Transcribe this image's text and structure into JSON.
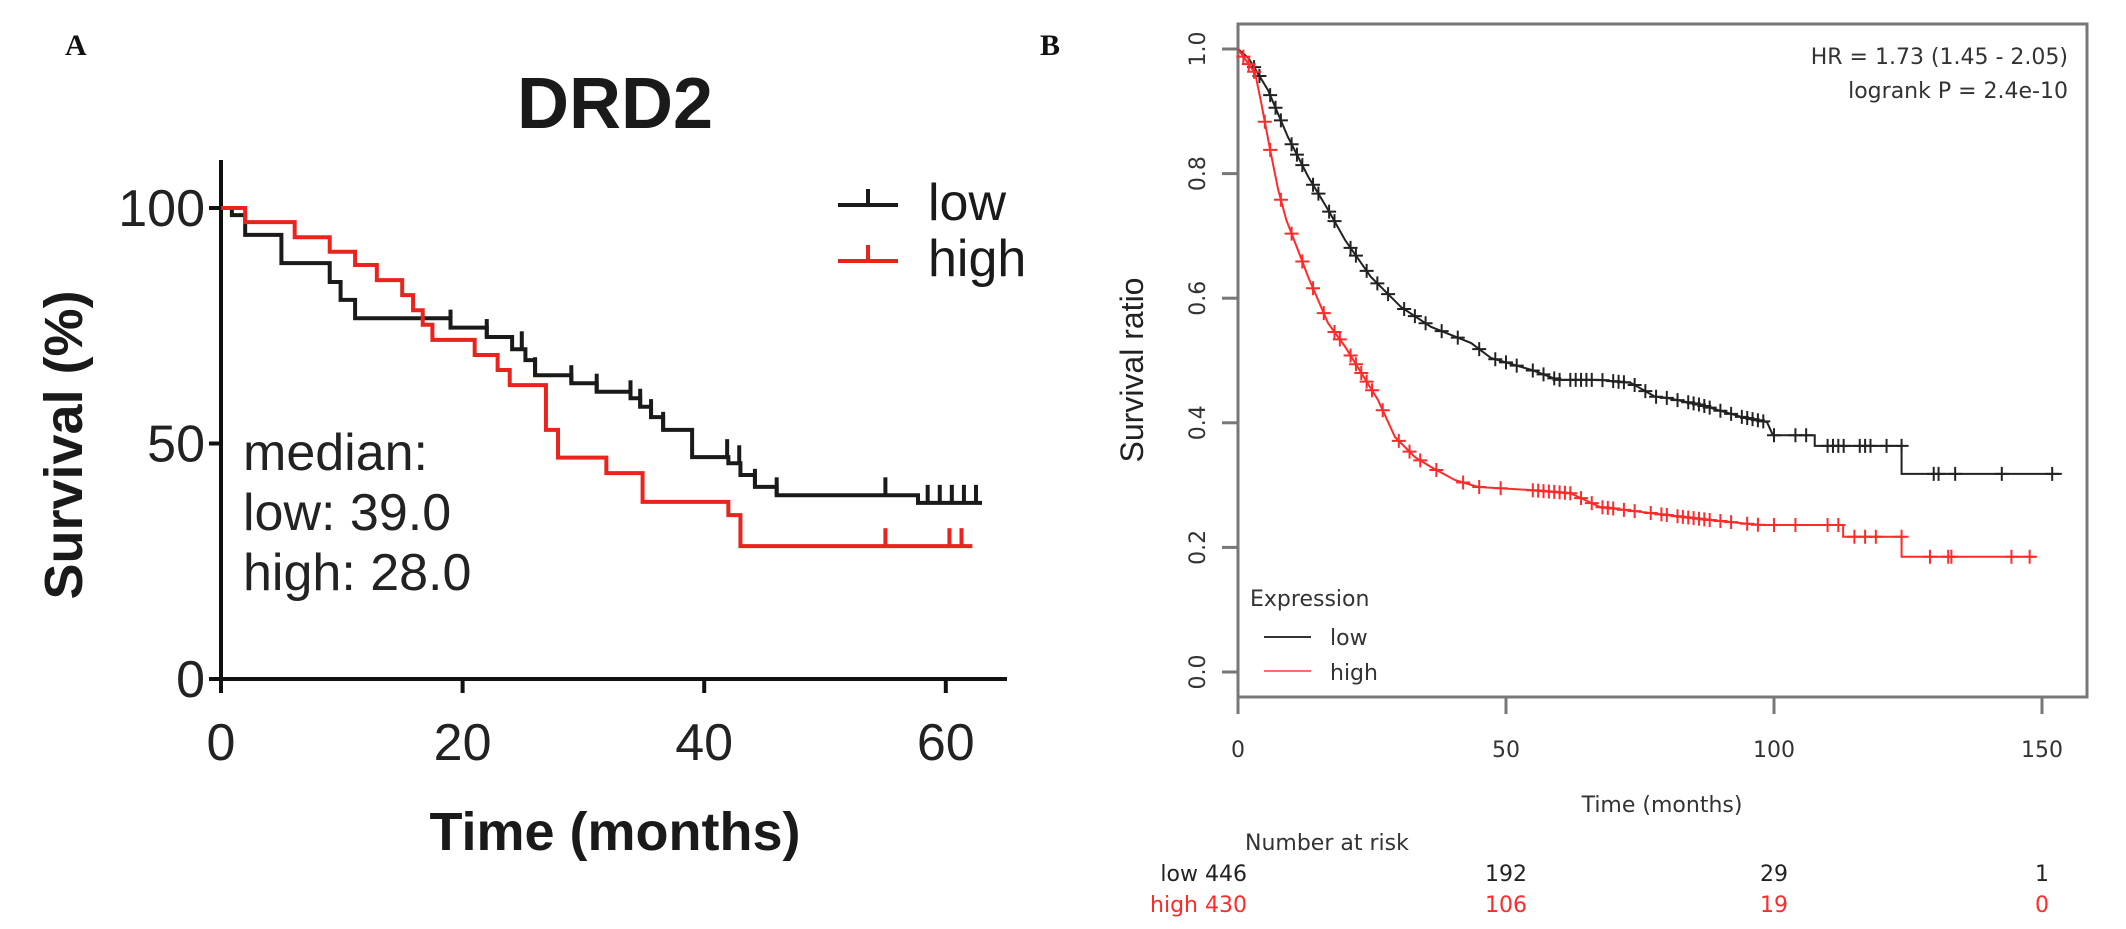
{
  "colors": {
    "low": "#1a1a1a",
    "high": "#e8241d",
    "high_b": "#ff2a2a",
    "frame": "#777777"
  },
  "chart_data": [
    {
      "panel": "A",
      "type": "line",
      "subtype": "kaplan-meier step",
      "title": "DRD2",
      "xlabel": "Time (months)",
      "ylabel": "Survival (%)",
      "xlim": [
        0,
        63
      ],
      "ylim": [
        0,
        100
      ],
      "xticks": [
        0,
        20,
        40,
        60
      ],
      "yticks": [
        0,
        50,
        100
      ],
      "legend": {
        "position": "top-right",
        "entries": [
          "low",
          "high"
        ]
      },
      "annotation": [
        "median:",
        "low: 39.0",
        "high: 28.0"
      ],
      "series": [
        {
          "name": "low",
          "steps": [
            [
              0,
              100
            ],
            [
              0.9,
              98.5
            ],
            [
              2.0,
              94.3
            ],
            [
              5.0,
              88.3
            ],
            [
              9.0,
              84.3
            ],
            [
              9.9,
              80.5
            ],
            [
              11.1,
              76.6
            ],
            [
              19.0,
              74.6
            ],
            [
              22.0,
              72.6
            ],
            [
              24.1,
              70.0
            ],
            [
              25.2,
              67.7
            ],
            [
              26.0,
              64.5
            ],
            [
              29.0,
              62.8
            ],
            [
              31.1,
              61.0
            ],
            [
              33.9,
              59.6
            ],
            [
              34.7,
              57.8
            ],
            [
              35.6,
              55.6
            ],
            [
              36.6,
              52.9
            ],
            [
              39.0,
              47.1
            ],
            [
              42.0,
              45.8
            ],
            [
              43.0,
              43.3
            ],
            [
              44.2,
              40.8
            ],
            [
              46.0,
              39.0
            ],
            [
              57.7,
              37.4
            ]
          ],
          "end": 63,
          "censored": [
            19.0,
            22.0,
            24.9,
            26.0,
            29.0,
            31.1,
            33.9,
            34.7,
            35.6,
            36.6,
            41.9,
            42.9,
            44.2,
            46.0,
            55.0,
            58.5,
            59.5,
            60.5,
            61.5,
            62.5
          ]
        },
        {
          "name": "high",
          "steps": [
            [
              0,
              100
            ],
            [
              2.0,
              97.0
            ],
            [
              6.1,
              93.8
            ],
            [
              9.0,
              90.7
            ],
            [
              11.1,
              87.9
            ],
            [
              12.9,
              84.7
            ],
            [
              15.0,
              81.5
            ],
            [
              15.9,
              78.3
            ],
            [
              16.7,
              75.2
            ],
            [
              17.5,
              72.0
            ],
            [
              21.0,
              68.8
            ],
            [
              22.9,
              65.6
            ],
            [
              23.9,
              62.4
            ],
            [
              26.9,
              52.9
            ],
            [
              27.9,
              47.0
            ],
            [
              31.9,
              43.7
            ],
            [
              34.9,
              37.6
            ],
            [
              42.0,
              34.8
            ],
            [
              43.0,
              28.2
            ]
          ],
          "end": 62.2,
          "censored": [
            55.0,
            60.3,
            61.3
          ]
        }
      ]
    },
    {
      "panel": "B",
      "type": "line",
      "subtype": "kaplan-meier",
      "title": "",
      "xlabel": "Time (months)",
      "ylabel": "Survival ratio",
      "xlim": [
        0,
        160
      ],
      "ylim": [
        0,
        1.0
      ],
      "xticks": [
        0,
        50,
        100,
        150
      ],
      "yticks": [
        "0.0",
        "0.2",
        "0.4",
        "0.6",
        "0.8",
        "1.0"
      ],
      "annotation": [
        "HR = 1.73 (1.45 - 2.05)",
        "logrank P = 2.4e-10"
      ],
      "legend": {
        "position": "bottom-left",
        "title": "Expression",
        "entries": [
          "low",
          "high"
        ]
      },
      "series": [
        {
          "name": "low",
          "points": [
            [
              0,
              1.0
            ],
            [
              2,
              0.985
            ],
            [
              5.6,
              0.934
            ],
            [
              9.3,
              0.859
            ],
            [
              13.1,
              0.795
            ],
            [
              16.8,
              0.742
            ],
            [
              20,
              0.693
            ],
            [
              24.8,
              0.634
            ],
            [
              30.4,
              0.586
            ],
            [
              36,
              0.554
            ],
            [
              43.5,
              0.528
            ],
            [
              47.2,
              0.504
            ],
            [
              54.7,
              0.485
            ],
            [
              59.7,
              0.469
            ],
            [
              67.5,
              0.469
            ],
            [
              73.3,
              0.464
            ],
            [
              77.8,
              0.442
            ],
            [
              80,
              0.44
            ],
            [
              86.2,
              0.429
            ],
            [
              93.7,
              0.41
            ],
            [
              98.7,
              0.401
            ],
            [
              99.8,
              0.38
            ],
            [
              107.6,
              0.38
            ],
            [
              107.6,
              0.363
            ],
            [
              123.8,
              0.363
            ],
            [
              123.8,
              0.318
            ],
            [
              153.7,
              0.318
            ]
          ],
          "censored": [
            3,
            4,
            6,
            7,
            8,
            10,
            11,
            12,
            14,
            15,
            17,
            18,
            21,
            22,
            24,
            26,
            28,
            31,
            33,
            35,
            38,
            41,
            45,
            48,
            50,
            52,
            55,
            57,
            59,
            60,
            62,
            63,
            64,
            65,
            66,
            68,
            70,
            71,
            72,
            74,
            76,
            78,
            80,
            82,
            84,
            85,
            86,
            87,
            88,
            90,
            92,
            94,
            95,
            96,
            97,
            98,
            100,
            104,
            106,
            110,
            111,
            112,
            113,
            116,
            117,
            118,
            121,
            123.8,
            129.8,
            130.7,
            133.8,
            142.5,
            151.9
          ]
        },
        {
          "name": "high",
          "points": [
            [
              0,
              1.0
            ],
            [
              3.2,
              0.961
            ],
            [
              4.3,
              0.915
            ],
            [
              6,
              0.838
            ],
            [
              7.5,
              0.774
            ],
            [
              9,
              0.726
            ],
            [
              11.2,
              0.677
            ],
            [
              13.1,
              0.634
            ],
            [
              16.8,
              0.56
            ],
            [
              20,
              0.522
            ],
            [
              23,
              0.48
            ],
            [
              26.1,
              0.437
            ],
            [
              29.3,
              0.377
            ],
            [
              33,
              0.345
            ],
            [
              36,
              0.329
            ],
            [
              40.5,
              0.308
            ],
            [
              44.8,
              0.297
            ],
            [
              54.7,
              0.292
            ],
            [
              62,
              0.287
            ],
            [
              67.5,
              0.265
            ],
            [
              80,
              0.252
            ],
            [
              88,
              0.244
            ],
            [
              97.4,
              0.236
            ],
            [
              112.9,
              0.236
            ],
            [
              112.9,
              0.217
            ],
            [
              123.8,
              0.217
            ],
            [
              123.8,
              0.185
            ],
            [
              149,
              0.185
            ]
          ],
          "censored": [
            1,
            2,
            3,
            5,
            6,
            8,
            10,
            12,
            14,
            16,
            18,
            19,
            21,
            22,
            23,
            24,
            25,
            27,
            30,
            32,
            34,
            37,
            42,
            45,
            49,
            55,
            56,
            57,
            58,
            59,
            60,
            61,
            62,
            64,
            66,
            68,
            69,
            70,
            72,
            74,
            77,
            79,
            80,
            82,
            83,
            84,
            85,
            86,
            87,
            88,
            90,
            92,
            95,
            97,
            100,
            104,
            110,
            112,
            115,
            117,
            119,
            123.8,
            129.1,
            132.5,
            133.1,
            144.3,
            147.7
          ]
        }
      ],
      "number_at_risk": {
        "title": "Number at risk",
        "times": [
          0,
          50,
          100,
          150
        ],
        "rows": [
          {
            "label": "low",
            "values": [
              "446",
              "192",
              "29",
              "1"
            ]
          },
          {
            "label": "high",
            "values": [
              "430",
              "106",
              "19",
              "0"
            ]
          }
        ]
      }
    }
  ],
  "labels": {
    "panel_a": "A",
    "panel_b": "B"
  }
}
